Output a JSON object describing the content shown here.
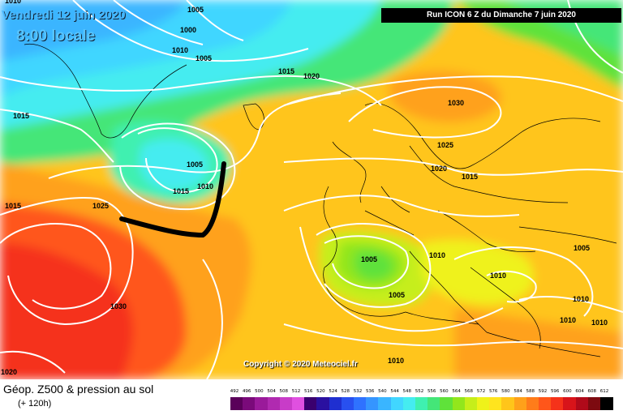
{
  "header": {
    "date_line": "Vendredi 12 juin 2020",
    "local_time": "8:00 locale",
    "run_banner": "Run ICON 6 Z du Dimanche 7 juin 2020"
  },
  "copyright": "Copyright © 2020 Meteociel.fr",
  "footer": {
    "title": "Géop. Z500 & pression au sol",
    "lead_time": "(+ 120h)"
  },
  "isobar_labels": [
    "1010",
    "1005",
    "1000",
    "1010",
    "1005",
    "1015",
    "1020",
    "1015",
    "1030",
    "1025",
    "1020",
    "1015",
    "1005",
    "1015",
    "1010",
    "1025",
    "1015",
    "1030",
    "1005",
    "1010",
    "1005",
    "1010",
    "1005",
    "1010",
    "1010",
    "1010",
    "1010",
    "1020"
  ],
  "legend": {
    "labels": [
      "492",
      "496",
      "500",
      "504",
      "508",
      "512",
      "516",
      "520",
      "524",
      "528",
      "532",
      "536",
      "540",
      "544",
      "548",
      "552",
      "556",
      "560",
      "564",
      "568",
      "572",
      "576",
      "580",
      "584",
      "588",
      "592",
      "596",
      "600",
      "604",
      "608",
      "612"
    ],
    "colors": [
      "#5a005a",
      "#7a0a7a",
      "#9a1a9a",
      "#b02ab0",
      "#c83cc8",
      "#e050e0",
      "#3a006e",
      "#2a10a0",
      "#1f2fd0",
      "#2850f0",
      "#2f72ff",
      "#3595ff",
      "#3ab5ff",
      "#41d6ff",
      "#45ecf0",
      "#3ff0b0",
      "#44e678",
      "#5fe23a",
      "#92e61c",
      "#c6ee1a",
      "#eff21a",
      "#ffe41e",
      "#ffc51a",
      "#ffa11a",
      "#ff7c1a",
      "#ff561a",
      "#f5321a",
      "#d8141a",
      "#b00a1a",
      "#7d0a10",
      "#000000"
    ]
  }
}
